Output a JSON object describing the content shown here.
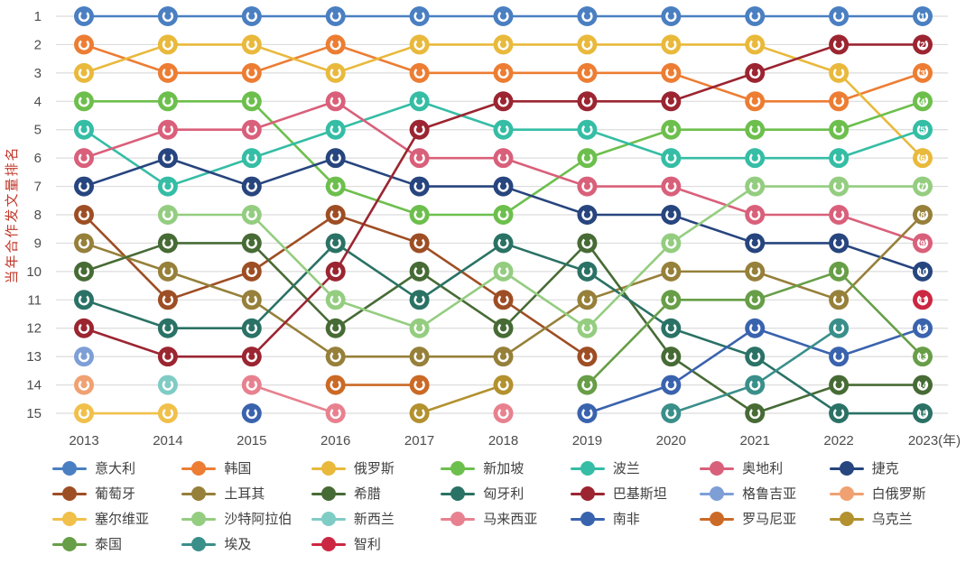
{
  "figure": {
    "kind": "bump-chart"
  },
  "axes": {
    "y_label": "当年合作发文量排名",
    "y_ticks": [
      "1",
      "2",
      "3",
      "4",
      "5",
      "6",
      "7",
      "8",
      "9",
      "10",
      "11",
      "12",
      "13",
      "14",
      "15"
    ],
    "x_ticks": [
      "2013",
      "2014",
      "2015",
      "2016",
      "2017",
      "2018",
      "2019",
      "2020",
      "2021",
      "2022",
      "2023"
    ],
    "x_suffix": "(年)",
    "tick_color": "#4d4d4d",
    "y_label_color": "#c0392b",
    "grid_color": "#dcdcdc"
  },
  "chart_data": {
    "type": "line",
    "subtype": "bump-ranking",
    "title": "",
    "xlabel": "(年)",
    "ylabel": "当年合作发文量排名",
    "x": [
      "2013",
      "2014",
      "2015",
      "2016",
      "2017",
      "2018",
      "2019",
      "2020",
      "2021",
      "2022",
      "2023"
    ],
    "ylim": [
      1,
      15
    ],
    "y_inverted": true,
    "grid": "horizontal",
    "legend_position": "bottom",
    "marker_glyph": "open-ring",
    "last_column_shows_rank_number": true,
    "series": [
      {
        "name": "意大利",
        "color": "#4a7fc1",
        "ranks": [
          1,
          1,
          1,
          1,
          1,
          1,
          1,
          1,
          1,
          1,
          1
        ]
      },
      {
        "name": "韩国",
        "color": "#ec7d33",
        "ranks": [
          2,
          3,
          3,
          2,
          3,
          3,
          3,
          3,
          4,
          4,
          3
        ]
      },
      {
        "name": "俄罗斯",
        "color": "#e9b93c",
        "ranks": [
          3,
          2,
          2,
          3,
          2,
          2,
          2,
          2,
          2,
          3,
          6
        ]
      },
      {
        "name": "新加坡",
        "color": "#6dbf4d",
        "ranks": [
          4,
          4,
          4,
          7,
          8,
          8,
          6,
          5,
          5,
          5,
          4
        ]
      },
      {
        "name": "波兰",
        "color": "#35bda5",
        "ranks": [
          5,
          7,
          6,
          5,
          4,
          5,
          5,
          6,
          6,
          6,
          5
        ]
      },
      {
        "name": "奥地利",
        "color": "#d9607a",
        "ranks": [
          6,
          5,
          5,
          4,
          6,
          6,
          7,
          7,
          8,
          8,
          9
        ]
      },
      {
        "name": "捷克",
        "color": "#27457e",
        "ranks": [
          7,
          6,
          7,
          6,
          7,
          7,
          8,
          8,
          9,
          9,
          10
        ]
      },
      {
        "name": "葡萄牙",
        "color": "#9e4e24",
        "ranks": [
          8,
          11,
          10,
          8,
          9,
          11,
          13,
          null,
          null,
          null,
          null
        ]
      },
      {
        "name": "土耳其",
        "color": "#96803a",
        "ranks": [
          9,
          10,
          11,
          13,
          13,
          13,
          11,
          10,
          10,
          11,
          8
        ]
      },
      {
        "name": "希腊",
        "color": "#476b35",
        "ranks": [
          10,
          9,
          9,
          12,
          10,
          12,
          9,
          13,
          15,
          14,
          14
        ]
      },
      {
        "name": "匈牙利",
        "color": "#2a7265",
        "ranks": [
          11,
          12,
          12,
          9,
          11,
          9,
          10,
          12,
          13,
          15,
          15
        ]
      },
      {
        "name": "巴基斯坦",
        "color": "#9b2531",
        "ranks": [
          12,
          13,
          13,
          10,
          5,
          4,
          4,
          4,
          3,
          2,
          2
        ]
      },
      {
        "name": "格鲁吉亚",
        "color": "#7d9fd6",
        "ranks": [
          13,
          null,
          null,
          null,
          null,
          null,
          null,
          null,
          null,
          null,
          null
        ]
      },
      {
        "name": "白俄罗斯",
        "color": "#f0a172",
        "ranks": [
          14,
          null,
          null,
          null,
          null,
          null,
          null,
          null,
          null,
          null,
          null
        ]
      },
      {
        "name": "塞尔维亚",
        "color": "#f0c04a",
        "ranks": [
          15,
          15,
          null,
          null,
          null,
          null,
          null,
          null,
          null,
          null,
          null
        ]
      },
      {
        "name": "沙特阿拉伯",
        "color": "#94cd80",
        "ranks": [
          null,
          8,
          8,
          11,
          12,
          10,
          12,
          9,
          7,
          7,
          7
        ]
      },
      {
        "name": "新西兰",
        "color": "#7fccc5",
        "ranks": [
          null,
          14,
          null,
          null,
          null,
          null,
          null,
          null,
          null,
          null,
          null
        ]
      },
      {
        "name": "马来西亚",
        "color": "#e8818f",
        "ranks": [
          null,
          null,
          14,
          15,
          null,
          15,
          null,
          null,
          null,
          null,
          null
        ]
      },
      {
        "name": "南非",
        "color": "#3a63ae",
        "ranks": [
          null,
          null,
          15,
          null,
          null,
          null,
          15,
          14,
          12,
          13,
          12
        ]
      },
      {
        "name": "罗马尼亚",
        "color": "#cb6a26",
        "ranks": [
          null,
          null,
          null,
          14,
          14,
          null,
          null,
          null,
          null,
          null,
          null
        ]
      },
      {
        "name": "乌克兰",
        "color": "#b3912f",
        "ranks": [
          null,
          null,
          null,
          null,
          15,
          14,
          null,
          null,
          null,
          null,
          null
        ]
      },
      {
        "name": "泰国",
        "color": "#679e47",
        "ranks": [
          null,
          null,
          null,
          null,
          null,
          null,
          14,
          11,
          11,
          10,
          13
        ]
      },
      {
        "name": "埃及",
        "color": "#3a8f8a",
        "ranks": [
          null,
          null,
          null,
          null,
          null,
          null,
          null,
          15,
          14,
          12,
          null
        ]
      },
      {
        "name": "智利",
        "color": "#cc2742",
        "ranks": [
          null,
          null,
          null,
          null,
          null,
          null,
          null,
          null,
          null,
          null,
          11
        ]
      }
    ]
  }
}
